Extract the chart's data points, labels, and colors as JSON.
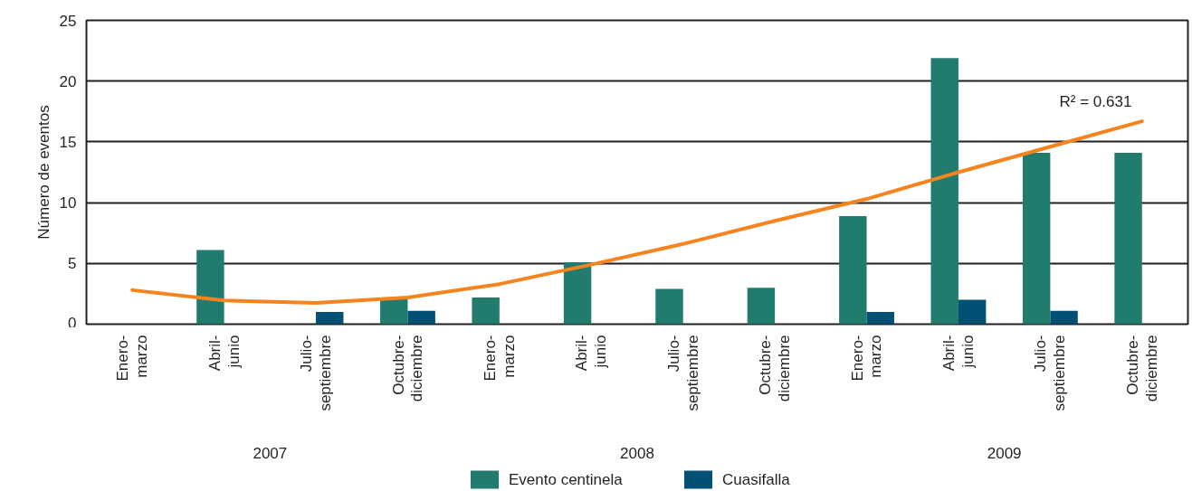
{
  "chart_data": {
    "type": "bar",
    "ylabel": "Número de eventos",
    "categories": [
      "Enero-marzo",
      "Abril-junio",
      "Julio-septiembre",
      "Octubre-diciembre",
      "Enero-marzo",
      "Abril-junio",
      "Julio-septiembre",
      "Octubre-diciembre",
      "Enero-marzo",
      "Abril-junio",
      "Julio-septiembre",
      "Octubre-diciembre"
    ],
    "series": [
      {
        "name": "Evento centinela",
        "color": "#217c6e",
        "values": [
          0,
          6.1,
          0,
          2.2,
          2.2,
          5.1,
          2.9,
          3.0,
          8.9,
          21.9,
          14.1,
          14.1
        ]
      },
      {
        "name": "Cuasifalla",
        "color": "#035075",
        "values": [
          0,
          0,
          1.0,
          1.1,
          0,
          0,
          0,
          0,
          1.0,
          2.0,
          1.1,
          0
        ]
      },
      {
        "type": "line",
        "color": "#f5841f",
        "values": [
          2.8,
          1.95,
          1.75,
          2.2,
          3.3,
          4.9,
          6.6,
          8.5,
          10.3,
          12.5,
          14.6,
          16.7
        ]
      }
    ],
    "annotations": [
      "R² = 0.631",
      "2007",
      "2008",
      "2009"
    ],
    "ylim": [
      0,
      25
    ],
    "yticks": [
      0,
      5,
      10,
      15,
      20,
      25
    ],
    "grid": "y",
    "legend": "bottom"
  }
}
